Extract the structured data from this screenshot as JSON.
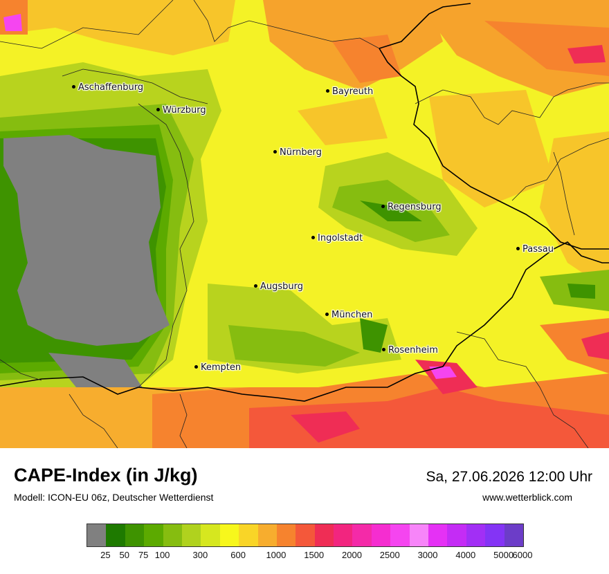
{
  "map": {
    "cities": [
      {
        "name": "Aschaffenburg"
      },
      {
        "name": "Würzburg"
      },
      {
        "name": "Bayreuth"
      },
      {
        "name": "Nürnberg"
      },
      {
        "name": "Regensburg"
      },
      {
        "name": "Ingolstadt"
      },
      {
        "name": "Passau"
      },
      {
        "name": "Augsburg"
      },
      {
        "name": "München"
      },
      {
        "name": "Rosenheim"
      },
      {
        "name": "Kempten"
      }
    ]
  },
  "footer": {
    "title": "CAPE-Index (in J/kg)",
    "subtitle": "Modell: ICON-EU 06z, Deutscher Wetterdienst",
    "datetime": "Sa, 27.06.2026 12:00 Uhr",
    "source": "www.wetterblick.com"
  },
  "legend": {
    "colors": [
      "#808080",
      "#1e7a00",
      "#3e9300",
      "#5caa00",
      "#86bd10",
      "#b0d21e",
      "#d6e71f",
      "#f7f71c",
      "#f9d527",
      "#f7ad2e",
      "#f6832e",
      "#f4583a",
      "#ef2d55",
      "#f2257f",
      "#f42aa8",
      "#f52dd0",
      "#f545f0",
      "#f785f9",
      "#e531f5",
      "#c42cf5",
      "#a22ff5",
      "#8434f5",
      "#6c3dc8"
    ],
    "ticks": [
      "25",
      "50",
      "75",
      "100",
      "300",
      "600",
      "1000",
      "1500",
      "2000",
      "2500",
      "3000",
      "4000",
      "5000",
      "6000"
    ]
  }
}
